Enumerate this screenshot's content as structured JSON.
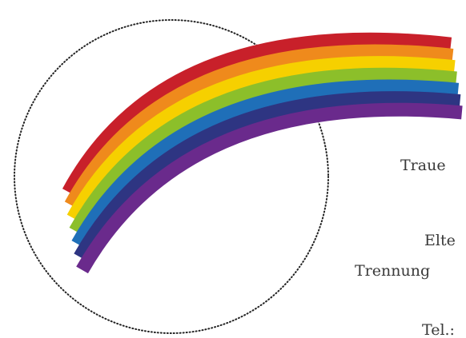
{
  "text_lines": [
    "Traue",
    "Elte",
    "Trennung",
    "Tel.:"
  ]
}
